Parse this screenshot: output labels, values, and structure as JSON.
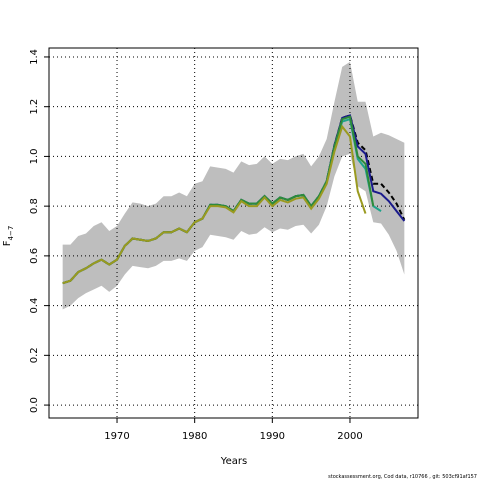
{
  "chart_data": {
    "type": "line",
    "xlabel": "Years",
    "ylabel": {
      "main": "F",
      "sub": "4−7"
    },
    "footer": "stockassessment.org, Cod data, r10766 , git: 503cf91af157",
    "grid": true,
    "x": [
      1963,
      1964,
      1965,
      1966,
      1967,
      1968,
      1969,
      1970,
      1971,
      1972,
      1973,
      1974,
      1975,
      1976,
      1977,
      1978,
      1979,
      1980,
      1981,
      1982,
      1983,
      1984,
      1985,
      1986,
      1987,
      1988,
      1989,
      1990,
      1991,
      1992,
      1993,
      1994,
      1995,
      1996,
      1997,
      1998,
      1999,
      2000,
      2001,
      2002,
      2003,
      2004,
      2005,
      2006,
      2007
    ],
    "band": {
      "color": "#bebebe",
      "upper": [
        0.645,
        0.645,
        0.68,
        0.69,
        0.72,
        0.735,
        0.7,
        0.72,
        0.77,
        0.815,
        0.81,
        0.8,
        0.81,
        0.84,
        0.84,
        0.855,
        0.84,
        0.89,
        0.9,
        0.96,
        0.955,
        0.95,
        0.935,
        0.98,
        0.965,
        0.97,
        1.0,
        0.97,
        0.99,
        0.985,
        1.0,
        1.01,
        0.96,
        1.0,
        1.07,
        1.22,
        1.36,
        1.38,
        1.22,
        1.22,
        1.08,
        1.095,
        1.085,
        1.07,
        1.055
      ],
      "lower": [
        0.385,
        0.4,
        0.43,
        0.45,
        0.465,
        0.48,
        0.455,
        0.48,
        0.525,
        0.56,
        0.555,
        0.55,
        0.56,
        0.58,
        0.58,
        0.59,
        0.58,
        0.62,
        0.635,
        0.685,
        0.68,
        0.675,
        0.665,
        0.7,
        0.685,
        0.69,
        0.715,
        0.695,
        0.71,
        0.705,
        0.72,
        0.725,
        0.69,
        0.725,
        0.8,
        0.92,
        1.0,
        1.01,
        0.88,
        0.86,
        0.735,
        0.73,
        0.685,
        0.62,
        0.525
      ]
    },
    "series": [
      {
        "color": "#000000",
        "dashed": true,
        "values": [
          0.49,
          0.5,
          0.535,
          0.55,
          0.57,
          0.585,
          0.565,
          0.585,
          0.64,
          0.67,
          0.665,
          0.66,
          0.67,
          0.695,
          0.695,
          0.71,
          0.695,
          0.735,
          0.75,
          0.805,
          0.805,
          0.8,
          0.78,
          0.825,
          0.81,
          0.81,
          0.84,
          0.81,
          0.835,
          0.825,
          0.84,
          0.845,
          0.8,
          0.84,
          0.9,
          1.045,
          1.155,
          1.165,
          1.055,
          1.025,
          0.89,
          0.89,
          0.855,
          0.81,
          0.745
        ]
      },
      {
        "color": "#1a1a8c",
        "values": [
          0.49,
          0.5,
          0.535,
          0.55,
          0.57,
          0.585,
          0.565,
          0.585,
          0.64,
          0.67,
          0.665,
          0.66,
          0.67,
          0.695,
          0.695,
          0.71,
          0.695,
          0.735,
          0.75,
          0.805,
          0.805,
          0.8,
          0.78,
          0.825,
          0.81,
          0.81,
          0.84,
          0.81,
          0.835,
          0.825,
          0.84,
          0.845,
          0.8,
          0.84,
          0.9,
          1.045,
          1.155,
          1.165,
          1.04,
          1.01,
          0.86,
          0.85,
          0.82,
          0.78,
          0.74
        ]
      },
      {
        "color": "#1fa38a",
        "values": [
          0.49,
          0.5,
          0.535,
          0.55,
          0.57,
          0.585,
          0.565,
          0.585,
          0.64,
          0.67,
          0.665,
          0.66,
          0.67,
          0.695,
          0.695,
          0.71,
          0.695,
          0.735,
          0.75,
          0.805,
          0.805,
          0.8,
          0.78,
          0.825,
          0.81,
          0.81,
          0.84,
          0.81,
          0.835,
          0.825,
          0.84,
          0.845,
          0.8,
          0.84,
          0.9,
          1.04,
          1.14,
          1.15,
          0.99,
          0.95,
          0.8,
          0.78,
          null,
          null,
          null
        ]
      },
      {
        "color": "#2e8b3a",
        "values": [
          0.49,
          0.5,
          0.535,
          0.55,
          0.57,
          0.585,
          0.565,
          0.585,
          0.64,
          0.67,
          0.665,
          0.66,
          0.67,
          0.695,
          0.695,
          0.71,
          0.695,
          0.735,
          0.75,
          0.805,
          0.805,
          0.8,
          0.78,
          0.825,
          0.81,
          0.81,
          0.84,
          0.81,
          0.835,
          0.825,
          0.84,
          0.845,
          0.8,
          0.84,
          0.9,
          1.04,
          1.15,
          1.16,
          1.0,
          0.97,
          0.8,
          null,
          null,
          null,
          null
        ]
      },
      {
        "color": "#9a9a20",
        "values": [
          0.49,
          0.5,
          0.535,
          0.55,
          0.57,
          0.585,
          0.565,
          0.585,
          0.64,
          0.67,
          0.665,
          0.66,
          0.67,
          0.695,
          0.695,
          0.71,
          0.695,
          0.735,
          0.75,
          0.8,
          0.8,
          0.795,
          0.775,
          0.82,
          0.8,
          0.8,
          0.835,
          0.8,
          0.825,
          0.815,
          0.83,
          0.835,
          0.79,
          0.83,
          0.89,
          1.02,
          1.12,
          1.08,
          0.86,
          0.77,
          null,
          null,
          null,
          null,
          null
        ]
      }
    ],
    "xlim": [
      1961.24,
      2008.76
    ],
    "ylim": [
      -0.052,
      1.436
    ],
    "xticks": [
      1970,
      1980,
      1990,
      2000
    ],
    "yticks": [
      {
        "value": 0,
        "label": "0.0"
      },
      0.2,
      0.4,
      0.6,
      0.8,
      {
        "value": 1,
        "label": "1.0"
      },
      1.2,
      1.4
    ]
  }
}
